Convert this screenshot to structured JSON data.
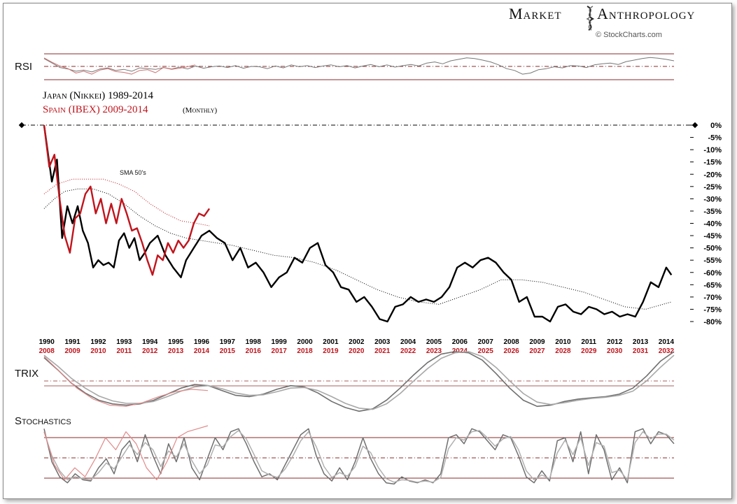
{
  "brand": {
    "name_left": "Market",
    "name_right": "Anthropology",
    "credit": "© StockCharts.com"
  },
  "colors": {
    "japan": "#000000",
    "spain": "#c0141c",
    "indicator_gray": "#8a8a8a",
    "indicator_red": "#e08a8a",
    "band_line": "#8b2a2a"
  },
  "chart_data": [
    {
      "type": "line",
      "panel": "RSI",
      "title": "RSI",
      "bands": [
        30,
        50,
        70
      ],
      "ylim": [
        0,
        100
      ],
      "series": [
        {
          "name": "",
          "color": "#777777",
          "values": [
            72,
            60,
            48,
            44,
            38,
            41,
            36,
            44,
            47,
            40,
            43,
            38,
            47,
            45,
            43,
            48,
            44,
            49,
            44,
            52,
            46,
            50,
            52,
            48,
            53,
            46,
            51,
            50,
            45,
            52,
            47,
            55,
            50,
            53,
            48,
            52,
            55,
            50,
            53,
            47,
            52,
            56,
            50,
            55,
            49,
            53,
            56,
            52,
            60,
            63,
            58,
            66,
            70,
            74,
            72,
            68,
            63,
            55,
            45,
            40,
            30,
            33,
            42,
            45,
            50,
            47,
            53,
            52,
            48,
            55,
            58,
            60,
            56,
            64,
            68,
            72,
            75,
            73,
            70,
            66
          ]
        },
        {
          "name": "",
          "color": "#d07070",
          "values": [
            74,
            62,
            52,
            45,
            33,
            38,
            30,
            41,
            45,
            37,
            35,
            30,
            40,
            42,
            34,
            48,
            43,
            46,
            50,
            55
          ]
        }
      ]
    },
    {
      "type": "line",
      "panel": "price",
      "title": "Japan (Nikkei) 1989-2014",
      "subtitle": "Spain (IBEX) 2009-2014",
      "subtitle_note": "(Monthly)",
      "annotation": "SMA 50's",
      "y_axis_labels": [
        "0%",
        "-5%",
        "-10%",
        "-15%",
        "-20%",
        "-25%",
        "-30%",
        "-35%",
        "-40%",
        "-45%",
        "-50%",
        "-55%",
        "-60%",
        "-65%",
        "-70%",
        "-75%",
        "-80%"
      ],
      "ylim": [
        -80,
        0
      ],
      "x_axis_labels_japan": [
        "1990",
        "1991",
        "1992",
        "1993",
        "1994",
        "1995",
        "1996",
        "1997",
        "1998",
        "1999",
        "2000",
        "2001",
        "2002",
        "2003",
        "2004",
        "2005",
        "2006",
        "2007",
        "2008",
        "2009",
        "2010",
        "2011",
        "2012",
        "2013",
        "2014"
      ],
      "x_axis_labels_spain": [
        "2008",
        "2009",
        "2010",
        "2011",
        "2012",
        "2013",
        "2014",
        "2015",
        "2016",
        "2017",
        "2018",
        "2019",
        "2020",
        "2021",
        "2022",
        "2023",
        "2024",
        "2025",
        "2026",
        "2027",
        "2028",
        "2029",
        "2030",
        "2031",
        "2032"
      ],
      "x_range": [
        1989.9,
        2014.3
      ],
      "series": [
        {
          "name": "Japan (Nikkei) 1989-2014",
          "color": "#000000",
          "x": [
            1989.9,
            1990.2,
            1990.4,
            1990.6,
            1990.8,
            1991.0,
            1991.2,
            1991.4,
            1991.6,
            1991.8,
            1992.0,
            1992.2,
            1992.4,
            1992.6,
            1992.8,
            1993.0,
            1993.2,
            1993.4,
            1993.6,
            1993.8,
            1994.0,
            1994.3,
            1994.6,
            1994.9,
            1995.2,
            1995.4,
            1995.7,
            1996.0,
            1996.3,
            1996.6,
            1996.9,
            1997.2,
            1997.5,
            1997.8,
            1998.1,
            1998.4,
            1998.7,
            1999.0,
            1999.3,
            1999.6,
            1999.9,
            2000.2,
            2000.5,
            2000.8,
            2001.1,
            2001.4,
            2001.7,
            2002.0,
            2002.3,
            2002.6,
            2002.9,
            2003.2,
            2003.5,
            2003.8,
            2004.1,
            2004.4,
            2004.7,
            2005.0,
            2005.3,
            2005.6,
            2005.9,
            2006.2,
            2006.5,
            2006.8,
            2007.1,
            2007.4,
            2007.7,
            2008.0,
            2008.3,
            2008.6,
            2008.9,
            2009.2,
            2009.5,
            2009.8,
            2010.1,
            2010.4,
            2010.7,
            2011.0,
            2011.3,
            2011.6,
            2011.9,
            2012.2,
            2012.5,
            2012.8,
            2013.1,
            2013.4,
            2013.7,
            2014.0,
            2014.2
          ],
          "values": [
            0,
            -23,
            -14,
            -46,
            -33,
            -40,
            -33,
            -43,
            -48,
            -58,
            -55,
            -57,
            -56,
            -58,
            -47,
            -44,
            -50,
            -46,
            -55,
            -52,
            -48,
            -45,
            -53,
            -58,
            -62,
            -55,
            -50,
            -45,
            -43,
            -46,
            -48,
            -55,
            -50,
            -58,
            -56,
            -60,
            -66,
            -62,
            -60,
            -54,
            -56,
            -50,
            -48,
            -57,
            -60,
            -66,
            -67,
            -72,
            -70,
            -74,
            -79,
            -80,
            -74,
            -73,
            -70,
            -72,
            -71,
            -72,
            -70,
            -66,
            -58,
            -56,
            -58,
            -55,
            -54,
            -56,
            -60,
            -63,
            -72,
            -70,
            -78,
            -78,
            -80,
            -74,
            -73,
            -76,
            -77,
            -74,
            -75,
            -77,
            -76,
            -78,
            -77,
            -78,
            -72,
            -64,
            -66,
            -58,
            -61
          ]
        },
        {
          "name": "Spain (IBEX) 2009-2014",
          "color": "#c0141c",
          "x": [
            1989.9,
            1990.1,
            1990.3,
            1990.5,
            1990.7,
            1990.9,
            1991.1,
            1991.3,
            1991.5,
            1991.7,
            1991.9,
            1992.1,
            1992.3,
            1992.5,
            1992.7,
            1992.9,
            1993.1,
            1993.3,
            1993.5,
            1993.7,
            1993.9,
            1994.1,
            1994.3,
            1994.5,
            1994.7,
            1994.9,
            1995.1,
            1995.3,
            1995.5,
            1995.7,
            1995.9,
            1996.1,
            1996.3
          ],
          "values": [
            0,
            -17,
            -12,
            -30,
            -45,
            -52,
            -38,
            -36,
            -28,
            -25,
            -36,
            -30,
            -40,
            -32,
            -40,
            -30,
            -36,
            -43,
            -42,
            -48,
            -55,
            -61,
            -53,
            -55,
            -48,
            -52,
            -47,
            -50,
            -47,
            -40,
            -36,
            -37,
            -34
          ]
        },
        {
          "name": "",
          "color": "#000000",
          "dotted": true,
          "x": [
            1989.9,
            1990.3,
            1990.7,
            1991.2,
            1991.8,
            1992.4,
            1993.0,
            1993.6,
            1994.2,
            1994.8,
            1995.4,
            1996.0,
            1996.6,
            1997.2,
            1998.0,
            1998.8,
            1999.6,
            2000.4,
            2001.2,
            2002.0,
            2002.8,
            2003.6,
            2004.4,
            2005.2,
            2006.0,
            2006.8,
            2007.6,
            2008.4,
            2009.2,
            2010.0,
            2010.8,
            2011.6,
            2012.4,
            2013.2,
            2014.2
          ],
          "values": [
            -34,
            -30,
            -27,
            -26,
            -26,
            -28,
            -32,
            -37,
            -41,
            -44,
            -46,
            -47,
            -48,
            -49,
            -51,
            -53,
            -54,
            -56,
            -59,
            -63,
            -67,
            -70,
            -72,
            -73,
            -70,
            -67,
            -63,
            -63,
            -64,
            -66,
            -68,
            -71,
            -74,
            -75,
            -72
          ]
        },
        {
          "name": "",
          "color": "#c0141c",
          "dotted": true,
          "x": [
            1989.9,
            1990.4,
            1991.0,
            1991.6,
            1992.2,
            1992.8,
            1993.4,
            1994.0,
            1994.6,
            1995.2,
            1995.8,
            1996.3
          ],
          "values": [
            -28,
            -24,
            -22,
            -22,
            -22,
            -24,
            -27,
            -32,
            -36,
            -39,
            -40,
            -41
          ]
        }
      ]
    },
    {
      "type": "line",
      "panel": "TRIX",
      "title": "TRIX",
      "series": [
        {
          "name": "",
          "color": "#6f6f6f",
          "values": [
            90,
            70,
            48,
            32,
            20,
            14,
            12,
            14,
            20,
            30,
            40,
            46,
            44,
            36,
            28,
            26,
            30,
            38,
            44,
            42,
            32,
            18,
            8,
            2,
            6,
            20,
            40,
            62,
            82,
            96,
            100,
            98,
            86,
            64,
            40,
            20,
            10,
            12,
            18,
            22,
            24,
            26,
            30,
            40,
            60,
            84,
            100
          ]
        },
        {
          "name": "",
          "color": "#a8a8a8",
          "values": [
            94,
            76,
            56,
            40,
            27,
            19,
            15,
            15,
            18,
            26,
            35,
            42,
            44,
            39,
            32,
            28,
            29,
            34,
            40,
            41,
            36,
            26,
            15,
            7,
            5,
            14,
            31,
            52,
            72,
            89,
            98,
            100,
            92,
            74,
            52,
            31,
            17,
            13,
            16,
            20,
            23,
            25,
            28,
            35,
            52,
            74,
            94
          ]
        },
        {
          "name": "",
          "color": "#e08a8a",
          "values": [
            92,
            66,
            40,
            22,
            12,
            10,
            16,
            26,
            34,
            38,
            36
          ]
        }
      ]
    },
    {
      "type": "line",
      "panel": "Stochastics",
      "title": "Stochastics",
      "bands": [
        20,
        50,
        80
      ],
      "ylim": [
        0,
        100
      ],
      "series": [
        {
          "name": "",
          "color": "#6f6f6f",
          "values": [
            95,
            40,
            15,
            5,
            20,
            10,
            8,
            30,
            45,
            20,
            60,
            75,
            40,
            85,
            50,
            20,
            70,
            40,
            80,
            30,
            10,
            45,
            80,
            60,
            90,
            95,
            70,
            40,
            15,
            20,
            10,
            35,
            60,
            85,
            95,
            50,
            20,
            8,
            30,
            10,
            40,
            80,
            45,
            20,
            5,
            3,
            15,
            8,
            5,
            10,
            5,
            20,
            80,
            85,
            70,
            95,
            90,
            75,
            60,
            85,
            80,
            50,
            15,
            5,
            25,
            8,
            75,
            80,
            40,
            90,
            20,
            85,
            60,
            10,
            30,
            5,
            90,
            95,
            70,
            90,
            85,
            70
          ]
        },
        {
          "name": "",
          "color": "#b0b0b0",
          "values": [
            90,
            50,
            25,
            10,
            15,
            12,
            10,
            22,
            38,
            28,
            48,
            68,
            52,
            72,
            60,
            32,
            58,
            48,
            70,
            42,
            20,
            35,
            68,
            65,
            82,
            92,
            78,
            52,
            25,
            18,
            14,
            28,
            50,
            75,
            90,
            65,
            32,
            14,
            22,
            16,
            32,
            66,
            55,
            30,
            12,
            6,
            10,
            9,
            6,
            8,
            6,
            14,
            62,
            80,
            76,
            90,
            92,
            80,
            66,
            78,
            82,
            60,
            25,
            10,
            18,
            12,
            55,
            76,
            52,
            80,
            34,
            72,
            66,
            22,
            26,
            10,
            72,
            90,
            78,
            86,
            86,
            76
          ]
        },
        {
          "name": "",
          "color": "#e08a8a",
          "values": [
            90,
            35,
            10,
            30,
            15,
            45,
            80,
            60,
            90,
            70,
            30,
            10,
            40,
            80,
            90,
            95,
            100
          ]
        }
      ]
    }
  ]
}
